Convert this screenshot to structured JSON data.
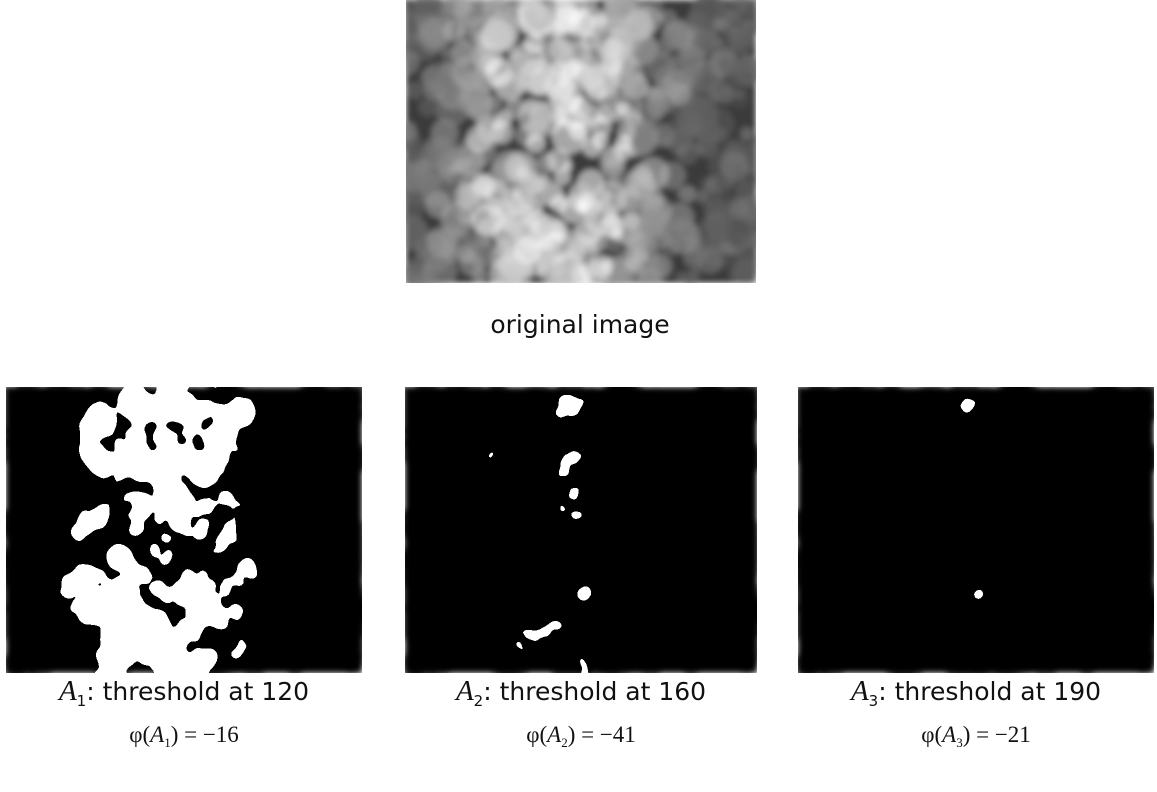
{
  "original": {
    "caption": "original image"
  },
  "panels": [
    {
      "set": "A",
      "index": "1",
      "caption": ": threshold at 120",
      "formula": {
        "prefix": "φ(",
        "set": "A",
        "index": "1",
        "suffix": ") = −16"
      }
    },
    {
      "set": "A",
      "index": "2",
      "caption": ": threshold at 160",
      "formula": {
        "prefix": "φ(",
        "set": "A",
        "index": "2",
        "suffix": ") = −41"
      }
    },
    {
      "set": "A",
      "index": "3",
      "caption": ": threshold at 190",
      "formula": {
        "prefix": "φ(",
        "set": "A",
        "index": "3",
        "suffix": ") = −21"
      }
    }
  ]
}
